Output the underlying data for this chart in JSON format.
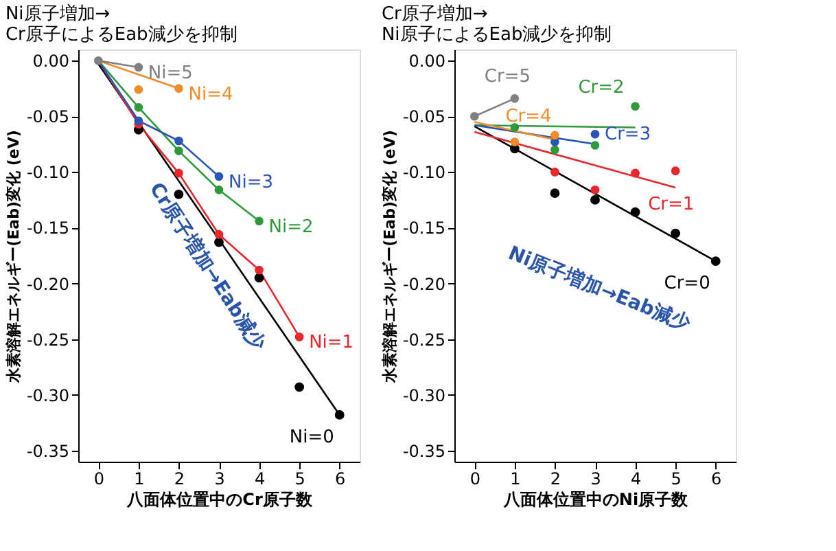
{
  "chart_data": [
    {
      "type": "scatter",
      "title": "Ni原子増加→\nCr原子によるEab減少を抑制",
      "xlabel": "八面体位置中のCr原子数",
      "ylabel": "水素溶解エネルギー(Eab)変化 (eV)",
      "xlim": [
        -0.5,
        6.5
      ],
      "ylim": [
        -0.36,
        0.01
      ],
      "xticks": [
        0,
        1,
        2,
        3,
        4,
        5,
        6
      ],
      "yticks": [
        {
          "value": 0.0,
          "label": "0.00"
        },
        {
          "value": -0.05,
          "label": "-0.05"
        },
        {
          "value": -0.1,
          "label": "-0.10"
        },
        {
          "value": -0.15,
          "label": "-0.15"
        },
        {
          "value": -0.2,
          "label": "-0.20"
        },
        {
          "value": -0.25,
          "label": "-0.25"
        },
        {
          "value": -0.3,
          "label": "-0.30"
        },
        {
          "value": -0.35,
          "label": "-0.35"
        }
      ],
      "grid": false,
      "marker": "circle",
      "annotations": [
        "Cr原子増加→Eab減少"
      ],
      "series": [
        {
          "type": "line",
          "marker": "none",
          "color": "#000000",
          "x": [
            0,
            6
          ],
          "values": [
            -0.003,
            -0.318
          ]
        },
        {
          "type": "line",
          "marker": "none",
          "color": "#e8262b",
          "x": [
            0,
            1,
            2,
            3,
            4,
            5
          ],
          "values": [
            0,
            -0.057,
            -0.101,
            -0.156,
            -0.188,
            -0.248
          ]
        },
        {
          "type": "line",
          "marker": "none",
          "color": "#2e9a3a",
          "x": [
            0,
            1,
            2,
            3,
            4
          ],
          "values": [
            0,
            -0.042,
            -0.081,
            -0.116,
            -0.144
          ]
        },
        {
          "type": "line",
          "marker": "none",
          "color": "#2a55b8",
          "x": [
            0,
            1,
            2,
            3
          ],
          "values": [
            0,
            -0.054,
            -0.072,
            -0.104
          ]
        },
        {
          "type": "line",
          "marker": "none",
          "color": "#f28c28",
          "x": [
            0,
            2
          ],
          "values": [
            0,
            -0.025
          ]
        },
        {
          "type": "line",
          "marker": "none",
          "color": "#808080",
          "x": [
            0,
            1
          ],
          "values": [
            0,
            -0.006
          ]
        },
        {
          "name": "Ni=0",
          "color": "#000000",
          "x": [
            1,
            2,
            3,
            4,
            5,
            6
          ],
          "values": [
            -0.062,
            -0.12,
            -0.163,
            -0.195,
            -0.293,
            -0.318
          ]
        },
        {
          "name": "Ni=1",
          "color": "#e8262b",
          "x": [
            1,
            2,
            3,
            4,
            5
          ],
          "values": [
            -0.057,
            -0.101,
            -0.156,
            -0.188,
            -0.248
          ]
        },
        {
          "name": "Ni=2",
          "color": "#2e9a3a",
          "x": [
            1,
            2,
            3,
            4
          ],
          "values": [
            -0.042,
            -0.081,
            -0.116,
            -0.144
          ]
        },
        {
          "name": "Ni=3",
          "color": "#2a55b8",
          "x": [
            1,
            2,
            3
          ],
          "values": [
            -0.054,
            -0.072,
            -0.104
          ]
        },
        {
          "name": "Ni=4",
          "color": "#f28c28",
          "x": [
            1,
            2
          ],
          "values": [
            -0.026,
            -0.025
          ]
        },
        {
          "name": "Ni=5",
          "color": "#808080",
          "x": [
            0,
            1
          ],
          "values": [
            0.0,
            -0.006
          ]
        }
      ]
    },
    {
      "type": "scatter",
      "title": "Cr原子増加→\nNi原子によるEab減少を抑制",
      "xlabel": "八面体位置中のNi原子数",
      "ylabel": "水素溶解エネルギー(Eab)変化 (eV)",
      "xlim": [
        -0.5,
        6.5
      ],
      "ylim": [
        -0.36,
        0.01
      ],
      "xticks": [
        0,
        1,
        2,
        3,
        4,
        5,
        6
      ],
      "yticks": [
        {
          "value": 0.0,
          "label": "0.00"
        },
        {
          "value": -0.05,
          "label": "-0.05"
        },
        {
          "value": -0.1,
          "label": "-0.10"
        },
        {
          "value": -0.15,
          "label": "-0.15"
        },
        {
          "value": -0.2,
          "label": "-0.20"
        },
        {
          "value": -0.25,
          "label": "-0.25"
        },
        {
          "value": -0.3,
          "label": "-0.30"
        },
        {
          "value": -0.35,
          "label": "-0.35"
        }
      ],
      "grid": false,
      "marker": "circle",
      "annotations": [
        "Ni原子増加→Eab減少"
      ],
      "series": [
        {
          "type": "line",
          "marker": "none",
          "color": "#000000",
          "x": [
            0,
            6
          ],
          "values": [
            -0.059,
            -0.18
          ]
        },
        {
          "type": "line",
          "marker": "none",
          "color": "#e8262b",
          "x": [
            0,
            5
          ],
          "values": [
            -0.064,
            -0.114
          ]
        },
        {
          "type": "line",
          "marker": "none",
          "color": "#2e9a3a",
          "x": [
            0,
            4
          ],
          "values": [
            -0.058,
            -0.06
          ]
        },
        {
          "type": "line",
          "marker": "none",
          "color": "#2a55b8",
          "x": [
            0,
            3
          ],
          "values": [
            -0.058,
            -0.075
          ]
        },
        {
          "type": "line",
          "marker": "none",
          "color": "#f28c28",
          "x": [
            0,
            2
          ],
          "values": [
            -0.055,
            -0.071
          ]
        },
        {
          "type": "line",
          "marker": "none",
          "color": "#808080",
          "x": [
            0,
            1
          ],
          "values": [
            -0.05,
            -0.034
          ]
        },
        {
          "name": "Cr=0",
          "color": "#000000",
          "x": [
            1,
            2,
            3,
            4,
            5,
            6
          ],
          "values": [
            -0.079,
            -0.119,
            -0.125,
            -0.136,
            -0.155,
            -0.18
          ]
        },
        {
          "name": "Cr=1",
          "color": "#e8262b",
          "x": [
            2,
            3,
            4,
            5
          ],
          "values": [
            -0.1,
            -0.116,
            -0.101,
            -0.099
          ]
        },
        {
          "name": "Cr=2",
          "color": "#2e9a3a",
          "x": [
            1,
            2,
            3,
            4
          ],
          "values": [
            -0.06,
            -0.08,
            -0.076,
            -0.041
          ]
        },
        {
          "name": "Cr=3",
          "color": "#2a55b8",
          "x": [
            2,
            3
          ],
          "values": [
            -0.073,
            -0.066
          ]
        },
        {
          "name": "Cr=4",
          "color": "#f28c28",
          "x": [
            1,
            2
          ],
          "values": [
            -0.073,
            -0.067
          ]
        },
        {
          "name": "Cr=5",
          "color": "#808080",
          "x": [
            0,
            1
          ],
          "values": [
            -0.05,
            -0.034
          ]
        }
      ]
    }
  ]
}
